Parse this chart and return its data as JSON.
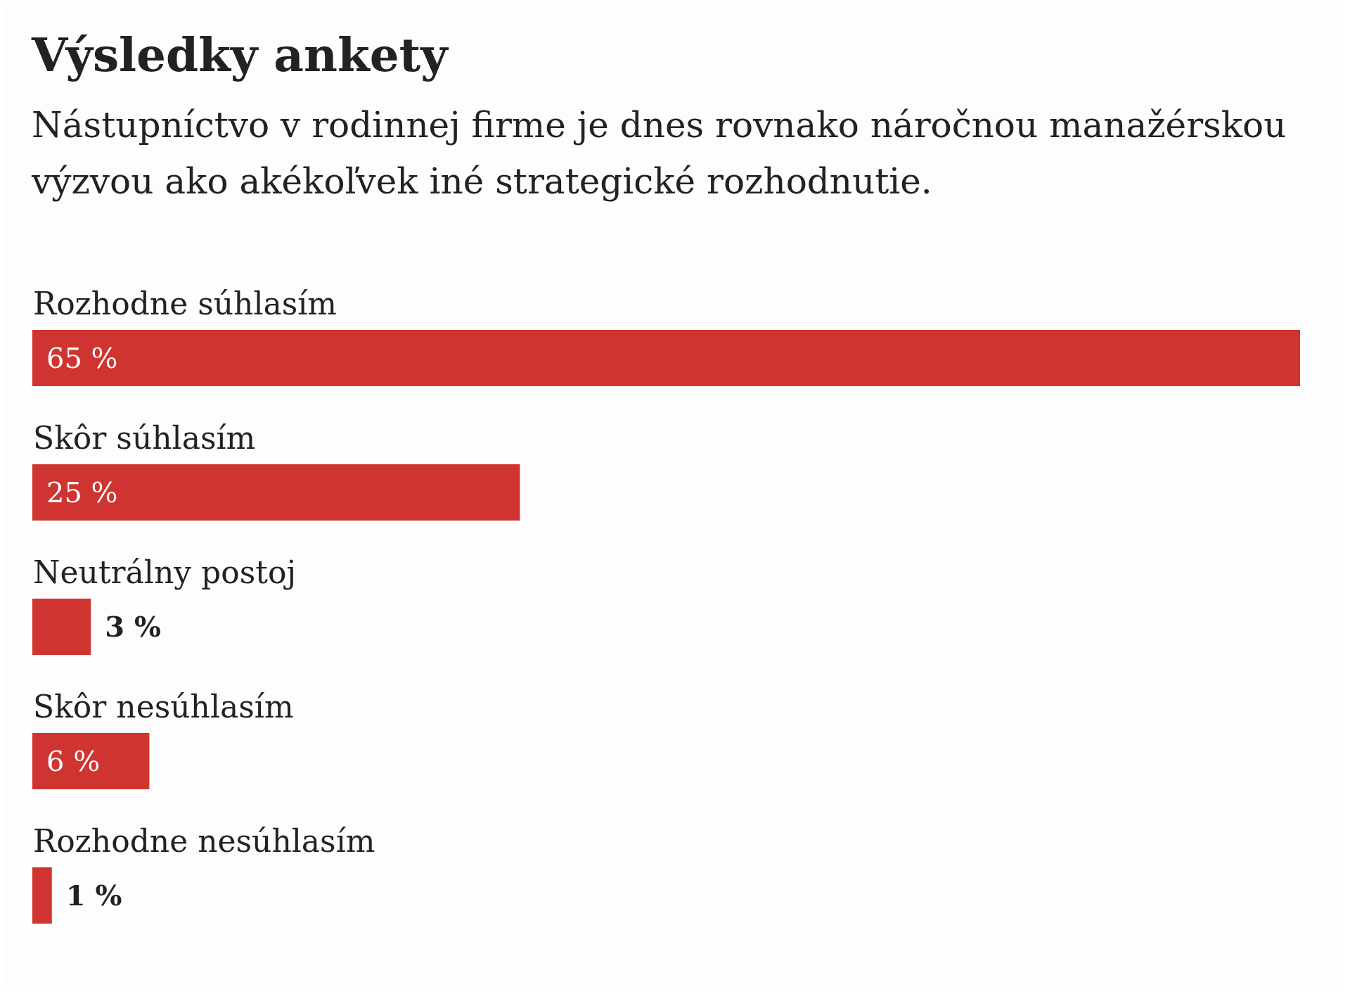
{
  "chart_data": {
    "type": "bar",
    "orientation": "horizontal",
    "title": "Výsledky ankety",
    "subtitle": "Nástupníctvo v rodinnej firme je dnes rovnako náročnou manažérskou výzvou ako akékoľvek iné strategické rozhodnutie.",
    "categories": [
      "Rozhodne súhlasím",
      "Skôr súhlasím",
      "Neutrálny postoj",
      "Skôr nesúhlasím",
      "Rozhodne nesúhlasím"
    ],
    "values": [
      65,
      25,
      3,
      6,
      1
    ],
    "value_labels": [
      "65 %",
      "25 %",
      "3 %",
      "6 %",
      "1 %"
    ],
    "color": "#cf3430"
  }
}
